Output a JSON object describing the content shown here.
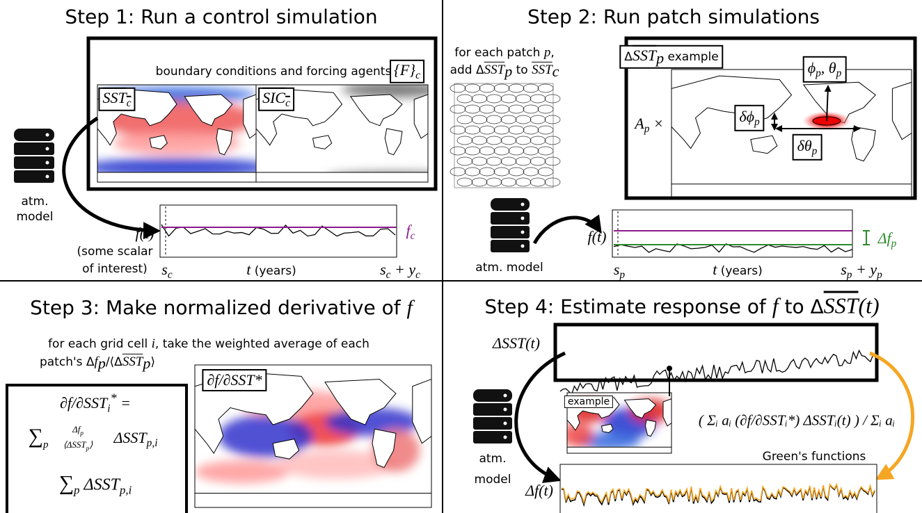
{
  "step1": {
    "title": "Step 1: Run a control simulation",
    "forcing": "boundary conditions and forcing agents",
    "F": "{F}",
    "F_sub": "c",
    "sst": "SST",
    "sst_sub": "c",
    "sic": "SIC",
    "sic_sub": "c",
    "model1": "atm.",
    "model2": "model",
    "ft": "f(t)",
    "scalar1": "(some scalar",
    "scalar2": "of interest)",
    "s": "s",
    "s_sub": "c",
    "taxis_t": "t",
    "taxis": " (years)",
    "end": "s",
    "end_sub": "c",
    "end_plus": " + y",
    "end_sub2": "c",
    "fc": "f",
    "fc_sub": "c"
  },
  "step2": {
    "title": "Step 2: Run patch simulations",
    "line1": "for each patch ",
    "line1_p": "p",
    "line1_end": ",",
    "add": "add Δ",
    "add_sst": "SST",
    "add_sub": "p",
    "add_to": " to ",
    "add_sst2": "SST",
    "add_sub2": "c",
    "ex_d": "Δ",
    "ex_sst": "SST",
    "ex_sub": "p",
    "ex_end": " example",
    "A": "A",
    "A_sub": "p",
    "A_times": " ×",
    "phi": "ϕ",
    "phi_sub": "p",
    "theta": ", θ",
    "theta_sub": "p",
    "dphi": "δϕ",
    "dphi_sub": "p",
    "dtheta": "δθ",
    "dtheta_sub": "p",
    "model": "atm. model",
    "ft": "f(t)",
    "df": "Δf",
    "df_sub": "p",
    "s": "s",
    "s_sub": "p",
    "taxis_t": "t",
    "taxis": " (years)",
    "end": "s",
    "end_sub": "p",
    "end_plus": " + y",
    "end_sub2": "p"
  },
  "step3": {
    "title": "Step 3: Make normalized derivative of ",
    "title_f": "f",
    "line1": "for each grid cell ",
    "line1_i": "i",
    "line1_end": ", take the weighted average of each",
    "line2": "patch's Δ",
    "line2_f": "f",
    "line2_sub": "p",
    "line2_mid": "/⟨Δ",
    "line2_sst": "SST",
    "line2_sub2": "p",
    "line2_end": "⟩",
    "lhs": "∂f/∂SST",
    "lhs_sub": "i",
    "lhs_sup": "*",
    "lhs_eq": " =",
    "sum": "∑",
    "sum_sub": "p",
    "frac_num": "Δf",
    "frac_num_sub": "p",
    "frac_den": "⟨ΔSST",
    "frac_den_sub": "p",
    "frac_den_end": "⟩",
    "num_term": "ΔSST",
    "num_sub": "p,i",
    "den_sum": "∑",
    "den_sum_sub": "p",
    "den_term": " ΔSST",
    "den_sub": "p,i",
    "map_label": "∂f/∂SST*"
  },
  "step4": {
    "title": "Step 4: Estimate response of ",
    "title_f": "f",
    "title_to": " to Δ",
    "title_sst": "SST",
    "title_t": "(t)",
    "dsst": "ΔSST(t)",
    "model1": "atm.",
    "model2": "model",
    "example": "example",
    "formula": "( Σᵢ aᵢ (∂f/∂SSTᵢ*) ΔSSTᵢ(t) ) / Σᵢ aᵢ",
    "greens": "Green's functions",
    "dft": "Δf(t)"
  }
}
